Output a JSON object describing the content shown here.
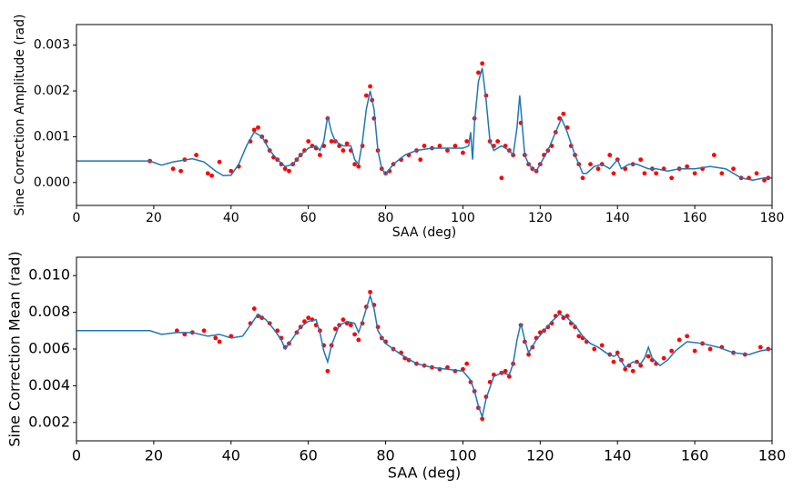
{
  "chart_data": [
    {
      "type": "line",
      "x_label": "SAA (deg)",
      "y_label": "Sine Correction Amplitude (rad)",
      "xlim": [
        0,
        180
      ],
      "xticks": [
        0,
        20,
        40,
        60,
        80,
        100,
        120,
        140,
        160,
        180
      ],
      "ylim": [
        -0.0005,
        0.00345
      ],
      "yticks": [
        {
          "value": 0,
          "label": "0.000"
        },
        0.001,
        0.002,
        0.003
      ],
      "series": [
        {
          "type": "scatter",
          "color": "#ff0000",
          "x": [
            19,
            25,
            27,
            28,
            31,
            34,
            35,
            37,
            40,
            42,
            45,
            46,
            47,
            48,
            49,
            50,
            51,
            52,
            53,
            54,
            55,
            56,
            57,
            58,
            59,
            60,
            61,
            62,
            63,
            64,
            65,
            66,
            67,
            68,
            69,
            70,
            71,
            72,
            73,
            74,
            75,
            76,
            76.5,
            77,
            78,
            79,
            80,
            81,
            82,
            84,
            86,
            88,
            89,
            90,
            92,
            94,
            96,
            98,
            100,
            101,
            103,
            104,
            105,
            106,
            107,
            108,
            109,
            110,
            111,
            112,
            113,
            115,
            116,
            117,
            118,
            119,
            120,
            121,
            122,
            123,
            124,
            125,
            126,
            127,
            128,
            129,
            130,
            131,
            133,
            135,
            136,
            138,
            139,
            140,
            142,
            144,
            146,
            147,
            149,
            150,
            152,
            154,
            156,
            158,
            160,
            162,
            165,
            167,
            170,
            172,
            174,
            176,
            178,
            179
          ],
          "values": [
            0.00047,
            0.0003,
            0.00025,
            0.0005,
            0.0006,
            0.0002,
            0.00015,
            0.00045,
            0.00025,
            0.00035,
            0.0009,
            0.00115,
            0.0012,
            0.001,
            0.0009,
            0.0007,
            0.00055,
            0.0005,
            0.0004,
            0.0003,
            0.00025,
            0.0004,
            0.0005,
            0.0006,
            0.0007,
            0.0009,
            0.0008,
            0.00075,
            0.0006,
            0.0008,
            0.0014,
            0.0009,
            0.0009,
            0.0008,
            0.0007,
            0.00085,
            0.0007,
            0.0004,
            0.00035,
            0.0008,
            0.0019,
            0.0021,
            0.0018,
            0.0014,
            0.0007,
            0.0003,
            0.0002,
            0.00025,
            0.0004,
            0.0005,
            0.0006,
            0.0007,
            0.0005,
            0.0008,
            0.00075,
            0.0008,
            0.0007,
            0.0008,
            0.00065,
            0.0009,
            0.0014,
            0.0024,
            0.0026,
            0.0019,
            0.0009,
            0.0008,
            0.0009,
            0.0001,
            0.0008,
            0.0007,
            0.0006,
            0.0013,
            0.0006,
            0.0004,
            0.0003,
            0.00025,
            0.0004,
            0.0006,
            0.0007,
            0.0008,
            0.0011,
            0.0014,
            0.0015,
            0.0012,
            0.0008,
            0.0006,
            0.0004,
            0.0001,
            0.0004,
            0.0003,
            0.0004,
            0.0006,
            0.0002,
            0.0005,
            0.0003,
            0.0004,
            0.0005,
            0.0002,
            0.0003,
            0.0002,
            0.0003,
            0.0001,
            0.0003,
            0.00035,
            0.0002,
            0.0003,
            0.0006,
            0.0002,
            0.0003,
            0.0001,
            0.0001,
            0.0002,
            5e-05,
            0.0001
          ]
        },
        {
          "type": "line",
          "color": "#1f77b4",
          "x": [
            0,
            19,
            22,
            25,
            30,
            33,
            36,
            38,
            40,
            42,
            44,
            46,
            48,
            50,
            52,
            54,
            56,
            58,
            60,
            62,
            63,
            64,
            65,
            66,
            67,
            69,
            71,
            72,
            73,
            74,
            75,
            76,
            77,
            78,
            79,
            80,
            82,
            85,
            88,
            92,
            96,
            100,
            101.5,
            102,
            102.5,
            103,
            104,
            105,
            106,
            107,
            108,
            110,
            112,
            113,
            114,
            114.7,
            115.3,
            116,
            117,
            118,
            119,
            120,
            122,
            124,
            125.5,
            127,
            129,
            131,
            132,
            134,
            136,
            138,
            140,
            141,
            143,
            145,
            148,
            150,
            153,
            156,
            160,
            164,
            168,
            172,
            175,
            178,
            180
          ],
          "values": [
            0.00047,
            0.00047,
            0.00038,
            0.00045,
            0.00052,
            0.00045,
            0.00025,
            0.00015,
            0.00016,
            0.0004,
            0.0008,
            0.0011,
            0.001,
            0.0007,
            0.0005,
            0.00035,
            0.0004,
            0.0006,
            0.00075,
            0.0008,
            0.0007,
            0.0009,
            0.00145,
            0.0011,
            0.0009,
            0.0008,
            0.0008,
            0.0005,
            0.0004,
            0.0009,
            0.0016,
            0.002,
            0.0016,
            0.0007,
            0.0003,
            0.00018,
            0.0004,
            0.0006,
            0.0007,
            0.00075,
            0.00075,
            0.00075,
            0.0008,
            0.0011,
            0.0005,
            0.0013,
            0.0022,
            0.0025,
            0.0018,
            0.0009,
            0.0007,
            0.0008,
            0.0007,
            0.0006,
            0.0012,
            0.0019,
            0.0013,
            0.0006,
            0.0004,
            0.0003,
            0.00025,
            0.0004,
            0.0007,
            0.0011,
            0.0014,
            0.0011,
            0.0006,
            0.0002,
            0.0002,
            0.00035,
            0.0004,
            0.0003,
            0.0005,
            0.0003,
            0.0004,
            0.0004,
            0.0003,
            0.0003,
            0.00025,
            0.0003,
            0.0003,
            0.00035,
            0.0003,
            0.0001,
            5e-05,
            0.0001,
            0.0001
          ]
        }
      ]
    },
    {
      "type": "line",
      "x_label": "SAA (deg)",
      "y_label": "Sine Correction Mean (rad)",
      "xlim": [
        0,
        180
      ],
      "xticks": [
        0,
        20,
        40,
        60,
        80,
        100,
        120,
        140,
        160,
        180
      ],
      "ylim": [
        0.001,
        0.011
      ],
      "yticks": [
        0.002,
        0.004,
        0.006,
        0.008,
        {
          "value": 0.01,
          "label": "0.010"
        }
      ],
      "series": [
        {
          "type": "scatter",
          "color": "#ff0000",
          "x": [
            26,
            28,
            30,
            33,
            36,
            37,
            40,
            45,
            46,
            47,
            48,
            50,
            52,
            53,
            54,
            55,
            57,
            58,
            59,
            60,
            61,
            62,
            63,
            64,
            65,
            66,
            67,
            68,
            69,
            70,
            71,
            72,
            73,
            74,
            75,
            76,
            77,
            78,
            79,
            80,
            82,
            84,
            85,
            86,
            88,
            90,
            92,
            94,
            96,
            98,
            100,
            101,
            102,
            103,
            104,
            105,
            106,
            107,
            108,
            110,
            111,
            112,
            113,
            115,
            116,
            117,
            118,
            119,
            120,
            121,
            122,
            123,
            124,
            125,
            126,
            127,
            128,
            129,
            130,
            131,
            132,
            134,
            136,
            138,
            139,
            140,
            141,
            142,
            143,
            144,
            145,
            146,
            148,
            149,
            150,
            152,
            154,
            156,
            158,
            160,
            162,
            164,
            167,
            170,
            173,
            177,
            179
          ],
          "values": [
            0.007,
            0.0068,
            0.0069,
            0.007,
            0.0066,
            0.0064,
            0.0067,
            0.0074,
            0.0082,
            0.0078,
            0.0077,
            0.0074,
            0.007,
            0.0066,
            0.0061,
            0.0063,
            0.0069,
            0.0072,
            0.0075,
            0.0077,
            0.0076,
            0.0073,
            0.007,
            0.0062,
            0.0048,
            0.0062,
            0.0071,
            0.0073,
            0.0076,
            0.0074,
            0.0073,
            0.0068,
            0.0065,
            0.0074,
            0.0083,
            0.0091,
            0.0084,
            0.0072,
            0.0066,
            0.0064,
            0.006,
            0.0058,
            0.0055,
            0.0054,
            0.0052,
            0.0051,
            0.005,
            0.0049,
            0.005,
            0.0048,
            0.0049,
            0.0052,
            0.0042,
            0.0037,
            0.0028,
            0.0022,
            0.0034,
            0.0042,
            0.0046,
            0.0047,
            0.0048,
            0.0045,
            0.0052,
            0.0073,
            0.0064,
            0.0057,
            0.0061,
            0.0066,
            0.0069,
            0.007,
            0.0072,
            0.0074,
            0.0078,
            0.008,
            0.0077,
            0.0078,
            0.0074,
            0.0072,
            0.0067,
            0.0066,
            0.0064,
            0.006,
            0.0062,
            0.0057,
            0.0053,
            0.0058,
            0.0054,
            0.0049,
            0.0051,
            0.0048,
            0.0053,
            0.0051,
            0.0056,
            0.0054,
            0.0052,
            0.0055,
            0.0059,
            0.0065,
            0.0067,
            0.0059,
            0.0063,
            0.006,
            0.0061,
            0.0058,
            0.0057,
            0.0061,
            0.006
          ]
        },
        {
          "type": "line",
          "color": "#1f77b4",
          "x": [
            0,
            19,
            22,
            26,
            30,
            34,
            37,
            40,
            43,
            45,
            47,
            49,
            51,
            53,
            54,
            56,
            58,
            60,
            62,
            63,
            64,
            65,
            66,
            68,
            70,
            72,
            73,
            74,
            76,
            77,
            78,
            80,
            84,
            88,
            92,
            96,
            100,
            102,
            103,
            104,
            105,
            106,
            108,
            110,
            112,
            113,
            114,
            115,
            116,
            117,
            119,
            121,
            123,
            125,
            127,
            129,
            131,
            133,
            135,
            137,
            139,
            140,
            142,
            144,
            146,
            147,
            148,
            149,
            151,
            153,
            155,
            158,
            162,
            166,
            170,
            174,
            177,
            180
          ],
          "values": [
            0.007,
            0.007,
            0.0068,
            0.0069,
            0.0069,
            0.0067,
            0.0068,
            0.0066,
            0.0067,
            0.0073,
            0.0079,
            0.0076,
            0.0071,
            0.0065,
            0.006,
            0.0066,
            0.0072,
            0.0075,
            0.0076,
            0.0069,
            0.0059,
            0.0053,
            0.0062,
            0.0073,
            0.0075,
            0.0074,
            0.0069,
            0.0075,
            0.0089,
            0.0082,
            0.007,
            0.0063,
            0.0057,
            0.0052,
            0.005,
            0.0049,
            0.0048,
            0.0043,
            0.0037,
            0.0029,
            0.0023,
            0.0033,
            0.0045,
            0.0047,
            0.0046,
            0.0052,
            0.0065,
            0.0074,
            0.0065,
            0.0058,
            0.0065,
            0.007,
            0.0075,
            0.0079,
            0.0077,
            0.0073,
            0.0067,
            0.0063,
            0.0061,
            0.0058,
            0.0056,
            0.0057,
            0.005,
            0.0053,
            0.0052,
            0.0055,
            0.0061,
            0.0055,
            0.0051,
            0.0054,
            0.0059,
            0.0064,
            0.0063,
            0.0061,
            0.0058,
            0.0057,
            0.0059,
            0.006
          ]
        }
      ]
    }
  ]
}
